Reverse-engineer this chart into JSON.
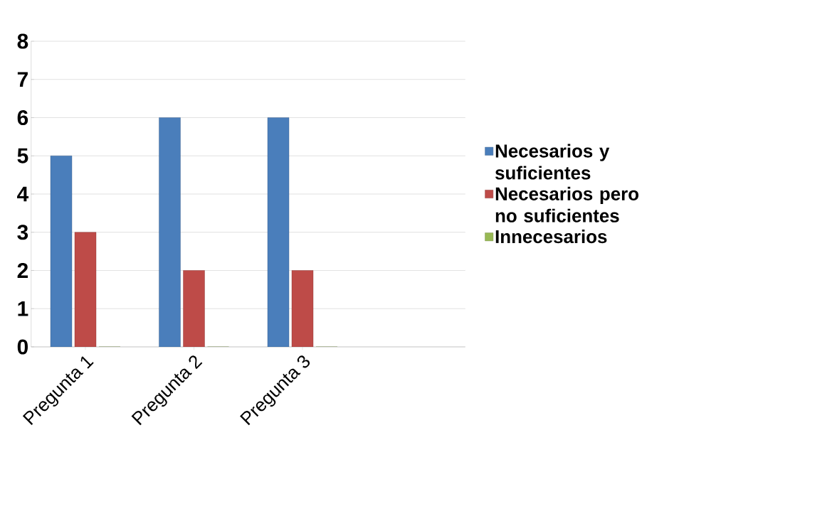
{
  "chart_data": {
    "type": "bar",
    "categories": [
      "Pregunta 1",
      "Pregunta 2",
      "Pregunta 3",
      null
    ],
    "series": [
      {
        "name": "Necesarios y suficientes",
        "color": "#4a7ebb",
        "values": [
          5,
          6,
          6,
          null
        ]
      },
      {
        "name": "Necesarios pero no suficientes",
        "color": "#be4b48",
        "values": [
          3,
          2,
          2,
          null
        ]
      },
      {
        "name": "Innecesarios",
        "color": "#98b954",
        "values": [
          0,
          0,
          0,
          null
        ]
      }
    ],
    "ylim": [
      0,
      8
    ],
    "yticks": [
      0,
      1,
      2,
      3,
      4,
      5,
      6,
      7,
      8
    ],
    "grid": "y",
    "legend": "right"
  }
}
